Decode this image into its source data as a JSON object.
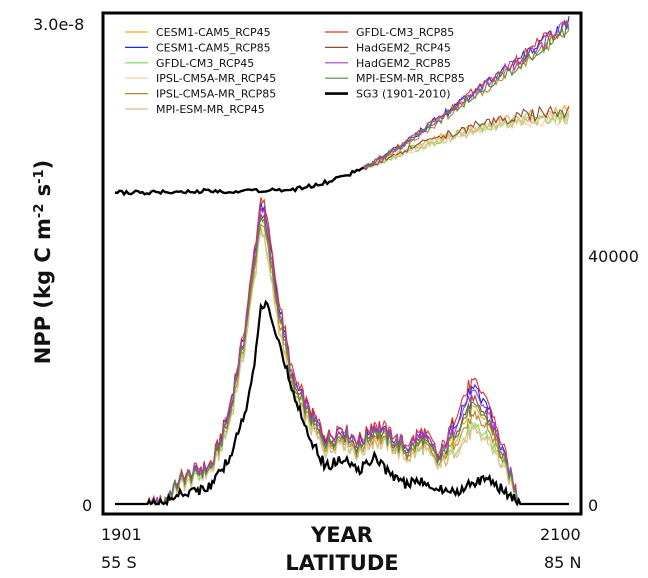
{
  "chart_data": {
    "type": "line",
    "title": "",
    "ylabel_main": "NPP (kg C m",
    "ylabel_sup1": "-2",
    "ylabel_mid": " s",
    "ylabel_sup2": "-1",
    "ylabel_end": ")",
    "xlabel_top": "YEAR",
    "xlabel_bottom": "LATITUDE",
    "left_axis": {
      "top_label": "3.0e-8",
      "bottom_label": "0",
      "ylim": [
        0,
        3e-08
      ]
    },
    "right_axis": {
      "mid_label": "40000",
      "bottom_label": "0",
      "ylim": [
        0,
        65000
      ]
    },
    "year_axis": {
      "start_label": "1901",
      "end_label": "2100",
      "xlim": [
        1901,
        2100
      ]
    },
    "latitude_axis": {
      "start_label": "55 S",
      "end_label": "85 N",
      "xlim": [
        -55,
        85
      ]
    },
    "grid": false,
    "legend_position": "top-left",
    "legend": [
      {
        "name": "CESM1-CAM5_RCP45",
        "color": "#f5a623",
        "width": 1.2
      },
      {
        "name": "CESM1-CAM5_RCP85",
        "color": "#1f2de0",
        "width": 1.2
      },
      {
        "name": "GFDL-CM3_RCP45",
        "color": "#6ee04a",
        "width": 1.2
      },
      {
        "name": "IPSL-CM5A-MR_RCP45",
        "color": "#f6cfa6",
        "width": 1.2
      },
      {
        "name": "IPSL-CM5A-MR_RCP85",
        "color": "#b8862b",
        "width": 1.2
      },
      {
        "name": "MPI-ESM-MR_RCP45",
        "color": "#d8c08a",
        "width": 1.2
      },
      {
        "name": "GFDL-CM3_RCP85",
        "color": "#e0302a",
        "width": 1.2
      },
      {
        "name": "HadGEM2_RCP45",
        "color": "#8b4a3a",
        "width": 1.2
      },
      {
        "name": "HadGEM2_RCP85",
        "color": "#a63ad6",
        "width": 1.2
      },
      {
        "name": "MPI-ESM-MR_RCP85",
        "color": "#4f8a45",
        "width": 1.2
      },
      {
        "name": "SG3 (1901-2010)",
        "color": "#000000",
        "width": 2.6
      }
    ],
    "time_series": {
      "x_label_note": "year",
      "sg3_1901_2010": {
        "x": [
          1901,
          1920,
          1940,
          1960,
          1980,
          1995,
          2010
        ],
        "y": [
          1.93e-08,
          1.93e-08,
          1.94e-08,
          1.94e-08,
          1.95e-08,
          2e-08,
          2.08e-08
        ]
      },
      "projections_rcp45": {
        "x": [
          2010,
          2030,
          2050,
          2070,
          2090,
          2100
        ],
        "y": [
          2.08e-08,
          2.2e-08,
          2.3e-08,
          2.38e-08,
          2.42e-08,
          2.43e-08
        ]
      },
      "projections_rcp85": {
        "x": [
          2010,
          2030,
          2050,
          2070,
          2090,
          2100
        ],
        "y": [
          2.08e-08,
          2.25e-08,
          2.45e-08,
          2.65e-08,
          2.85e-08,
          2.95e-08
        ]
      }
    },
    "latitude_profile": {
      "x_label_note": "latitude in degrees",
      "sg3": {
        "x": [
          -55,
          -45,
          -40,
          -35,
          -30,
          -25,
          -20,
          -15,
          -12,
          -10,
          -8,
          -5,
          0,
          5,
          10,
          15,
          20,
          25,
          30,
          35,
          40,
          45,
          50,
          55,
          60,
          65,
          70,
          75,
          80,
          85
        ],
        "y": [
          0,
          0,
          100,
          1500,
          1800,
          2500,
          6000,
          12000,
          19000,
          26000,
          27500,
          22000,
          15000,
          9000,
          5000,
          6000,
          4500,
          6200,
          4000,
          2600,
          3200,
          2000,
          1500,
          3000,
          3300,
          1800,
          0,
          0,
          0,
          0
        ]
      },
      "model_range": {
        "x": [
          -55,
          -45,
          -40,
          -35,
          -30,
          -25,
          -20,
          -15,
          -12,
          -10,
          -8,
          -5,
          0,
          5,
          10,
          15,
          20,
          25,
          30,
          35,
          40,
          45,
          50,
          55,
          60,
          65,
          70,
          75,
          80,
          85
        ],
        "low": [
          0,
          0,
          200,
          2500,
          3500,
          4500,
          10000,
          21000,
          30000,
          37000,
          33000,
          25000,
          14000,
          10500,
          7000,
          8500,
          6500,
          8500,
          7500,
          6000,
          7500,
          4800,
          7000,
          9500,
          8500,
          4500,
          0,
          0,
          0,
          0
        ],
        "high": [
          0,
          0,
          200,
          3500,
          4500,
          5500,
          12500,
          24000,
          34000,
          41500,
          38000,
          29000,
          17000,
          13000,
          9000,
          10500,
          8500,
          11000,
          9500,
          8000,
          10000,
          6500,
          12000,
          16500,
          14000,
          7000,
          0,
          0,
          0,
          0
        ]
      }
    }
  }
}
